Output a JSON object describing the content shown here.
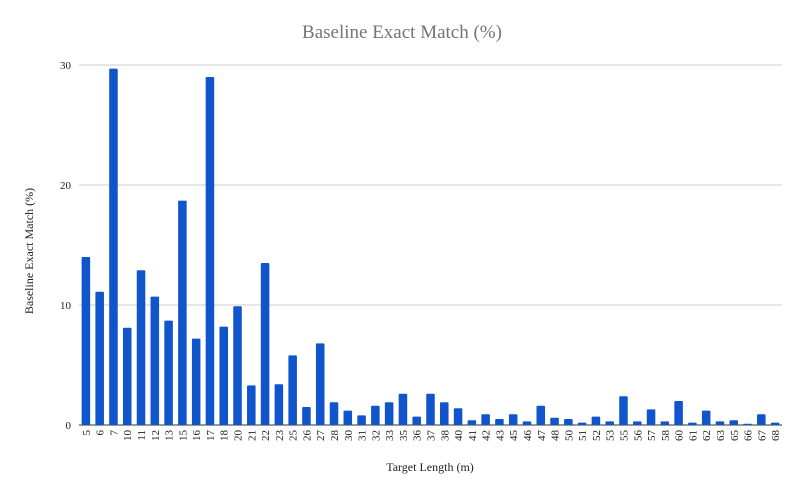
{
  "chart_data": {
    "type": "bar",
    "title": "Baseline Exact Match (%)",
    "xlabel": "Target Length (m)",
    "ylabel": "Baseline Exact Match (%)",
    "ylim": [
      0,
      30
    ],
    "yticks": [
      "0",
      "10",
      "20",
      "30"
    ],
    "grid": true,
    "legend": "none",
    "bar_color": "#1155cc",
    "categories": [
      "5",
      "6",
      "7",
      "10",
      "11",
      "12",
      "13",
      "15",
      "16",
      "17",
      "18",
      "20",
      "21",
      "22",
      "23",
      "25",
      "26",
      "27",
      "28",
      "30",
      "31",
      "32",
      "33",
      "35",
      "36",
      "37",
      "38",
      "40",
      "41",
      "42",
      "43",
      "45",
      "46",
      "47",
      "48",
      "50",
      "51",
      "52",
      "53",
      "55",
      "56",
      "57",
      "58",
      "60",
      "61",
      "62",
      "63",
      "65",
      "66",
      "67",
      "68"
    ],
    "values": [
      14.0,
      11.1,
      29.7,
      8.1,
      12.9,
      10.7,
      8.7,
      18.7,
      7.2,
      29.0,
      8.2,
      9.9,
      3.3,
      13.5,
      3.4,
      5.8,
      1.5,
      6.8,
      1.9,
      1.2,
      0.8,
      1.6,
      1.9,
      2.6,
      0.7,
      2.6,
      1.9,
      1.4,
      0.4,
      0.9,
      0.5,
      0.9,
      0.3,
      1.6,
      0.6,
      0.5,
      0.2,
      0.7,
      0.3,
      2.4,
      0.3,
      1.3,
      0.3,
      2.0,
      0.2,
      1.2,
      0.3,
      0.4,
      0.1,
      0.9,
      0.2
    ]
  }
}
